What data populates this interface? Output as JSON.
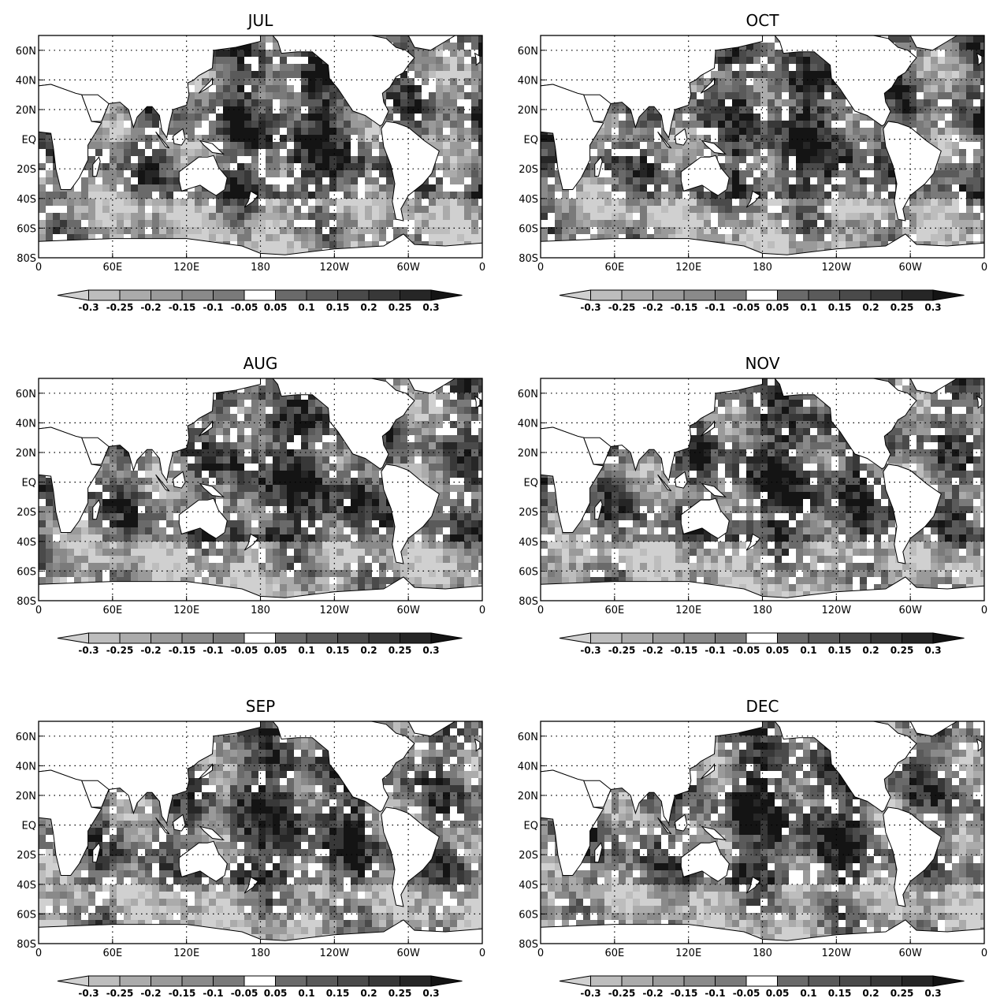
{
  "panels": [
    {
      "title": "JUL"
    },
    {
      "title": "OCT"
    },
    {
      "title": "AUG"
    },
    {
      "title": "NOV"
    },
    {
      "title": "SEP"
    },
    {
      "title": "DEC"
    }
  ],
  "axes": {
    "lat_labels": [
      "60N",
      "40N",
      "20N",
      "EQ",
      "20S",
      "40S",
      "60S",
      "80S"
    ],
    "lat_values": [
      60,
      40,
      20,
      0,
      -20,
      -40,
      -60,
      -80
    ],
    "lon_labels": [
      "0",
      "60E",
      "120E",
      "180",
      "120W",
      "60W",
      "0"
    ],
    "lon_values": [
      0,
      60,
      120,
      180,
      240,
      300,
      360
    ],
    "lat_range": [
      -80,
      70
    ],
    "lon_range": [
      0,
      360
    ],
    "grid": "dotted"
  },
  "colorbar": {
    "labels": [
      "-0.3",
      "-0.25",
      "-0.2",
      "-0.15",
      "-0.1",
      "-0.05",
      "0.05",
      "0.1",
      "0.15",
      "0.2",
      "0.25",
      "0.3"
    ],
    "colors": [
      "#d0d0d0",
      "#bdbdbd",
      "#ababab",
      "#9a9a9a",
      "#8a8a8a",
      "#7a7a7a",
      "#ffffff",
      "#6a6a6a",
      "#5a5a5a",
      "#4a4a4a",
      "#383838",
      "#262626",
      "#141414"
    ]
  },
  "land_color": "#ffffff"
}
